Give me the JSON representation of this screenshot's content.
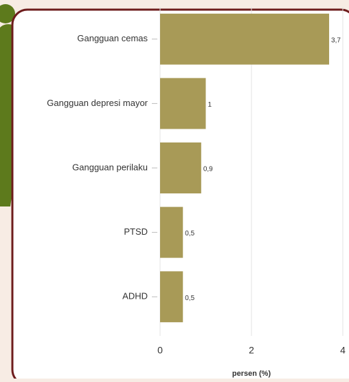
{
  "chart_data": {
    "type": "barh",
    "categories": [
      "Gangguan cemas",
      "Gangguan depresi mayor",
      "Gangguan perilaku",
      "PTSD",
      "ADHD"
    ],
    "values": [
      3.7,
      1,
      0.9,
      0.5,
      0.5
    ],
    "value_labels": [
      "3,7",
      "1",
      "0,9",
      "0,5",
      "0,5"
    ],
    "color": "#a89a57",
    "xlim": [
      0,
      4
    ],
    "xticks": [
      0,
      2,
      4
    ],
    "xlabel": "persen (%)",
    "grid": true
  }
}
